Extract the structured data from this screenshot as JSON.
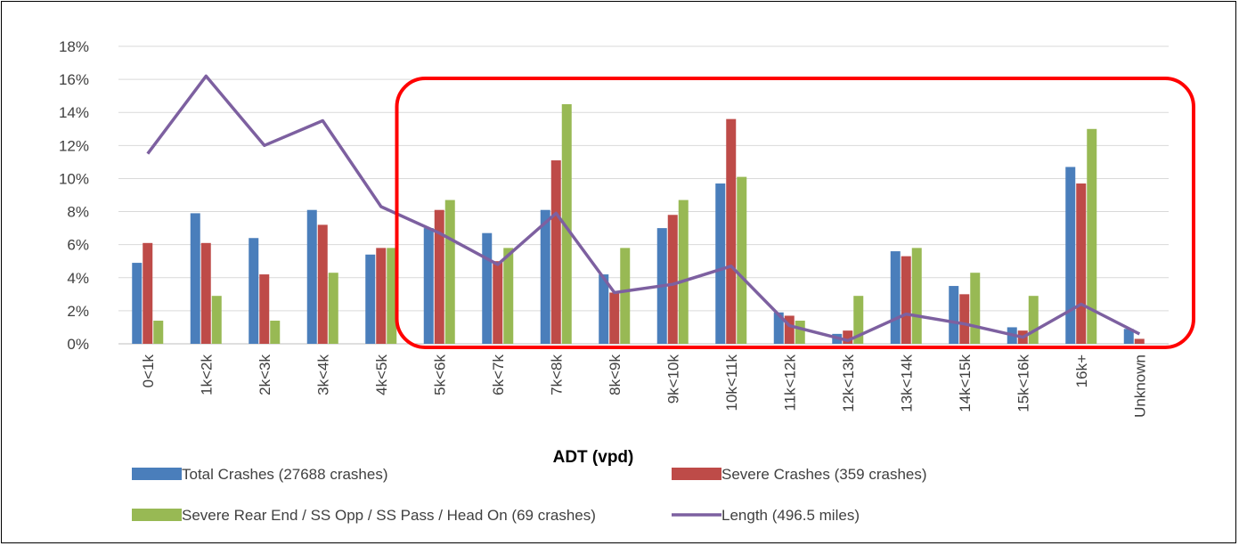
{
  "chart_data": {
    "type": "bar",
    "title": "",
    "xlabel": "ADT (vpd)",
    "ylabel": "",
    "ylim": [
      0,
      18
    ],
    "y_tick_step": 2,
    "y_tick_suffix": "%",
    "grid": true,
    "legend_position": "bottom",
    "categories": [
      "0<1k",
      "1k<2k",
      "2k<3k",
      "3k<4k",
      "4k<5k",
      "5k<6k",
      "6k<7k",
      "7k<8k",
      "8k<9k",
      "9k<10k",
      "10k<11k",
      "11k<12k",
      "12k<13k",
      "13k<14k",
      "14k<15k",
      "15k<16k",
      "16k+",
      "Unknown"
    ],
    "series": [
      {
        "name": "Total Crashes (27688 crashes)",
        "kind": "bar",
        "color": "#4a7ebb",
        "values": [
          4.9,
          7.9,
          6.4,
          8.1,
          5.4,
          7.0,
          6.7,
          8.1,
          4.2,
          7.0,
          9.7,
          1.9,
          0.6,
          5.6,
          3.5,
          1.0,
          10.7,
          0.9
        ]
      },
      {
        "name": "Severe Crashes (359 crashes)",
        "kind": "bar",
        "color": "#be4b48",
        "values": [
          6.1,
          6.1,
          4.2,
          7.2,
          5.8,
          8.1,
          5.0,
          11.1,
          3.1,
          7.8,
          13.6,
          1.7,
          0.8,
          5.3,
          3.0,
          0.8,
          9.7,
          0.3
        ]
      },
      {
        "name": "Severe Rear End / SS Opp / SS Pass / Head On (69 crashes)",
        "kind": "bar",
        "color": "#98b954",
        "values": [
          1.4,
          2.9,
          1.4,
          4.3,
          5.8,
          8.7,
          5.8,
          14.5,
          5.8,
          8.7,
          10.1,
          1.4,
          2.9,
          5.8,
          4.3,
          2.9,
          13.0,
          0.0
        ]
      },
      {
        "name": "Length (496.5 miles)",
        "kind": "line",
        "color": "#7d60a0",
        "values": [
          11.5,
          16.2,
          12.0,
          13.5,
          8.3,
          6.7,
          4.8,
          7.9,
          3.1,
          3.6,
          4.7,
          1.1,
          0.2,
          1.8,
          1.2,
          0.4,
          2.4,
          0.6
        ]
      }
    ],
    "highlight_box": {
      "color": "#ff0000",
      "from_category": "5k<6k",
      "to_category": "Unknown"
    }
  }
}
